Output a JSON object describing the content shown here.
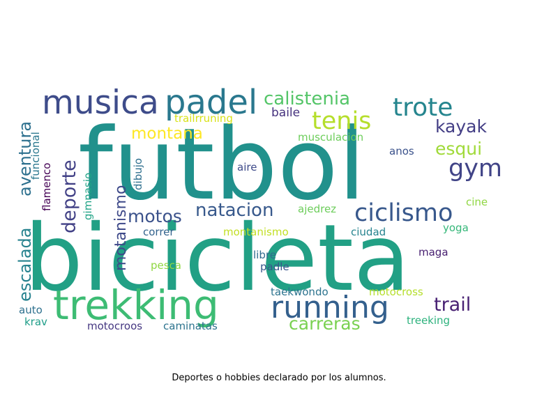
{
  "caption": "Deportes o hobbies declarado por los alumnos.",
  "words": [
    {
      "text": "futbol",
      "color": "#21918c"
    },
    {
      "text": "bicicleta",
      "color": "#22a085"
    },
    {
      "text": "trekking",
      "color": "#3dbc74"
    },
    {
      "text": "running",
      "color": "#34608d"
    },
    {
      "text": "musica",
      "color": "#3e4c8a"
    },
    {
      "text": "padel",
      "color": "#2a788e"
    },
    {
      "text": "trote",
      "color": "#25858e"
    },
    {
      "text": "calistenia",
      "color": "#54c568"
    },
    {
      "text": "tenis",
      "color": "#b5de2b"
    },
    {
      "text": "ciclismo",
      "color": "#38588c"
    },
    {
      "text": "gym",
      "color": "#414487"
    },
    {
      "text": "deporte",
      "color": "#424186"
    },
    {
      "text": "escalada",
      "color": "#26828e"
    },
    {
      "text": "aventura",
      "color": "#2d708e"
    },
    {
      "text": "natacion",
      "color": "#38598c"
    },
    {
      "text": "montana",
      "color": "#fde725"
    },
    {
      "text": "motos",
      "color": "#3b528b"
    },
    {
      "text": "motanismo",
      "color": "#3e4989"
    },
    {
      "text": "carreras",
      "color": "#7ad151"
    },
    {
      "text": "trail",
      "color": "#482173"
    },
    {
      "text": "kayak",
      "color": "#433e85"
    },
    {
      "text": "esqui",
      "color": "#a0da39"
    },
    {
      "text": "trailrruning",
      "color": "#d8e219"
    },
    {
      "text": "baile",
      "color": "#46327e"
    },
    {
      "text": "musculacion",
      "color": "#6ccd5a"
    },
    {
      "text": "anos",
      "color": "#3b528b"
    },
    {
      "text": "aire",
      "color": "#3e4a89"
    },
    {
      "text": "ajedrez",
      "color": "#6ccd5a"
    },
    {
      "text": "cine",
      "color": "#90d743"
    },
    {
      "text": "yoga",
      "color": "#35b779"
    },
    {
      "text": "correr",
      "color": "#33638d"
    },
    {
      "text": "montanismo",
      "color": "#c2df23"
    },
    {
      "text": "ciudad",
      "color": "#25838e"
    },
    {
      "text": "libre",
      "color": "#306a8e"
    },
    {
      "text": "maga",
      "color": "#482071"
    },
    {
      "text": "pesca",
      "color": "#90d743"
    },
    {
      "text": "padle",
      "color": "#39568c"
    },
    {
      "text": "taekwondo",
      "color": "#2c738e"
    },
    {
      "text": "motocross",
      "color": "#b5de2b"
    },
    {
      "text": "auto",
      "color": "#2d708e"
    },
    {
      "text": "krav",
      "color": "#1f9e89"
    },
    {
      "text": "motocroos",
      "color": "#453781"
    },
    {
      "text": "caminatas",
      "color": "#2c738e"
    },
    {
      "text": "treeking",
      "color": "#2db27d"
    },
    {
      "text": "flamenco",
      "color": "#440154"
    },
    {
      "text": "funcional",
      "color": "#2a778e"
    },
    {
      "text": "gimnasio",
      "color": "#20a386"
    },
    {
      "text": "dibujo",
      "color": "#2e6f8e"
    }
  ]
}
